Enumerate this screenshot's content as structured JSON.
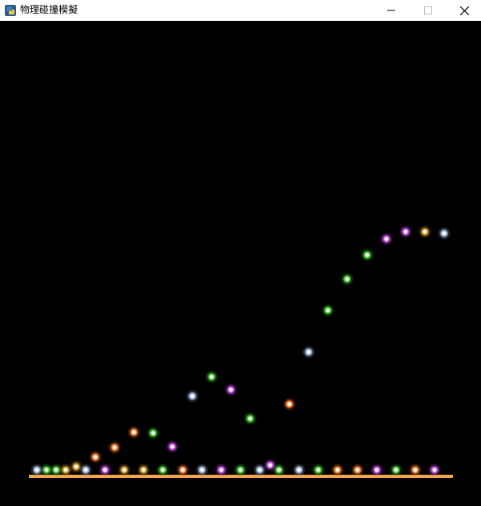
{
  "window": {
    "title": "物理碰撞模擬",
    "app_icon": "python-app-icon",
    "minimize_icon": "minimize-icon",
    "maximize_icon": "maximize-icon",
    "close_icon": "close-icon"
  },
  "scene": {
    "background": "#000000",
    "ground_color": "#f4a54a",
    "ball_colors": {
      "steel": "#8fa6c8",
      "green": "#3fbf2a",
      "gold": "#c8921e",
      "orange": "#f0772a",
      "magenta": "#c24be0"
    }
  }
}
